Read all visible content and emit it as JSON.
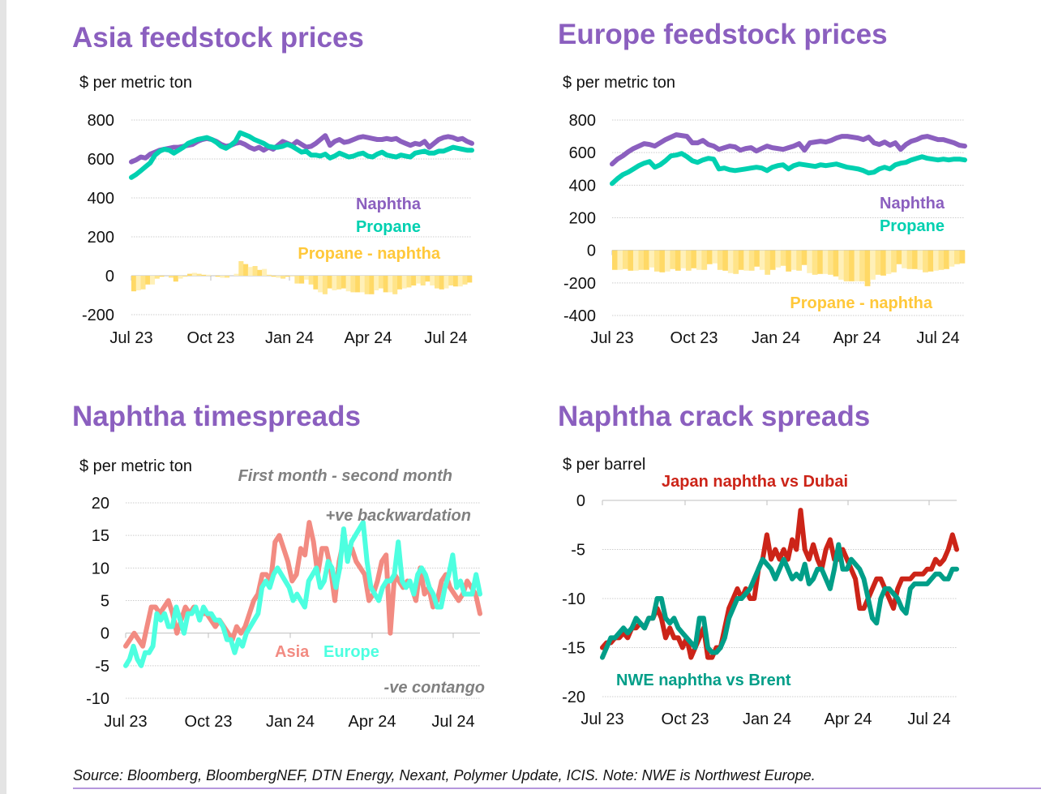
{
  "footer": {
    "source": "Source: Bloomberg, BloombergNEF, DTN Energy, Nexant, Polymer Update, ICIS. Note: NWE is Northwest Europe."
  },
  "colors": {
    "title": "#8b5fbf",
    "naphtha": "#8b5fbf",
    "propane": "#00d0b0",
    "spread": "#ffd24d",
    "asia_ts": "#f28b82",
    "europe_ts": "#4dffe0",
    "japan_crack": "#cc2418",
    "nwe_crack": "#009e88",
    "annotation": "#808080"
  },
  "chart_data": [
    {
      "id": "asia",
      "type": "line",
      "title": "Asia feedstock prices",
      "ylabel": "$ per metric ton",
      "xlabel": "",
      "ylim": [
        -200,
        800
      ],
      "yticks": [
        800,
        600,
        400,
        200,
        0,
        -200
      ],
      "xtick_labels": [
        "Jul 23",
        "Oct 23",
        "Jan 24",
        "Apr 24",
        "Jul 24"
      ],
      "x_range": [
        "Jul 23",
        "early Aug 24"
      ],
      "grid": true,
      "legend": [
        "Naphtha",
        "Propane",
        "Propane - naphtha"
      ],
      "series": [
        {
          "name": "Naphtha",
          "color": "#8b5fbf",
          "kind": "line",
          "values": [
            585,
            595,
            610,
            605,
            625,
            635,
            645,
            650,
            655,
            660,
            660,
            665,
            670,
            675,
            690,
            700,
            705,
            700,
            690,
            675,
            665,
            670,
            680,
            685,
            675,
            660,
            650,
            660,
            645,
            660,
            650,
            670,
            690,
            680,
            670,
            690,
            675,
            660,
            665,
            680,
            700,
            720,
            670,
            690,
            700,
            685,
            690,
            700,
            710,
            715,
            710,
            705,
            700,
            700,
            705,
            700,
            705,
            690,
            680,
            670,
            680,
            675,
            690,
            660,
            680,
            700,
            710,
            715,
            710,
            700,
            705,
            690,
            680
          ]
        },
        {
          "name": "Propane",
          "color": "#00d0b0",
          "kind": "line",
          "values": [
            505,
            520,
            540,
            560,
            580,
            620,
            640,
            650,
            645,
            630,
            645,
            660,
            680,
            690,
            700,
            705,
            710,
            700,
            685,
            665,
            655,
            670,
            690,
            735,
            725,
            715,
            700,
            690,
            680,
            665,
            660,
            660,
            665,
            675,
            665,
            650,
            635,
            640,
            620,
            620,
            615,
            625,
            605,
            615,
            630,
            620,
            610,
            615,
            625,
            630,
            615,
            610,
            625,
            635,
            620,
            615,
            610,
            620,
            615,
            610,
            630,
            635,
            640,
            630,
            630,
            640,
            640,
            650,
            660,
            655,
            650,
            645,
            645
          ]
        },
        {
          "name": "Propane - naphtha",
          "color": "#ffd24d",
          "kind": "bar",
          "values": [
            -80,
            -75,
            -70,
            -45,
            -45,
            -15,
            -5,
            0,
            -10,
            -30,
            -15,
            -5,
            10,
            15,
            10,
            5,
            5,
            0,
            -5,
            -10,
            -10,
            0,
            10,
            75,
            60,
            45,
            50,
            30,
            35,
            5,
            -5,
            -10,
            -15,
            -5,
            -5,
            -40,
            -40,
            -20,
            -45,
            -70,
            -85,
            -95,
            -65,
            -75,
            -70,
            -65,
            -80,
            -85,
            -85,
            -85,
            -95,
            -95,
            -75,
            -65,
            -85,
            -85,
            -95,
            -70,
            -65,
            -60,
            -50,
            -40,
            -50,
            -30,
            -50,
            -65,
            -70,
            -65,
            -50,
            -55,
            -55,
            -45,
            -35
          ]
        }
      ]
    },
    {
      "id": "europe",
      "type": "line",
      "title": "Europe feedstock prices",
      "ylabel": "$ per metric ton",
      "xlabel": "",
      "ylim": [
        -400,
        800
      ],
      "yticks": [
        800,
        600,
        400,
        200,
        0,
        -200,
        -400
      ],
      "xtick_labels": [
        "Jul 23",
        "Oct 23",
        "Jan 24",
        "Apr 24",
        "Jul 24"
      ],
      "x_range": [
        "Jul 23",
        "early Aug 24"
      ],
      "grid": true,
      "legend": [
        "Naphtha",
        "Propane",
        "Propane - naphtha"
      ],
      "series": [
        {
          "name": "Naphtha",
          "color": "#8b5fbf",
          "kind": "line",
          "values": [
            530,
            560,
            580,
            605,
            625,
            640,
            655,
            650,
            640,
            660,
            680,
            695,
            710,
            705,
            700,
            660,
            660,
            675,
            650,
            640,
            620,
            630,
            640,
            635,
            615,
            625,
            630,
            610,
            625,
            640,
            630,
            625,
            620,
            630,
            640,
            655,
            615,
            660,
            665,
            670,
            665,
            675,
            690,
            700,
            700,
            695,
            690,
            680,
            695,
            660,
            650,
            665,
            645,
            660,
            620,
            650,
            670,
            680,
            695,
            700,
            690,
            680,
            680,
            670,
            660,
            645,
            640
          ]
        },
        {
          "name": "Propane",
          "color": "#00d0b0",
          "kind": "line",
          "values": [
            410,
            440,
            465,
            480,
            500,
            520,
            535,
            545,
            510,
            525,
            550,
            580,
            585,
            595,
            575,
            550,
            540,
            555,
            565,
            560,
            500,
            505,
            495,
            490,
            495,
            500,
            505,
            510,
            505,
            490,
            510,
            520,
            525,
            500,
            520,
            530,
            525,
            520,
            515,
            525,
            520,
            525,
            530,
            520,
            510,
            505,
            500,
            490,
            475,
            480,
            500,
            510,
            500,
            525,
            535,
            540,
            555,
            565,
            575,
            565,
            560,
            555,
            560,
            555,
            560,
            560,
            555
          ]
        },
        {
          "name": "Propane - naphtha",
          "color": "#ffd24d",
          "kind": "bar",
          "values": [
            -120,
            -120,
            -115,
            -125,
            -125,
            -120,
            -120,
            -105,
            -130,
            -135,
            -130,
            -115,
            -125,
            -110,
            -125,
            -110,
            -120,
            -120,
            -85,
            -80,
            -120,
            -125,
            -140,
            -145,
            -120,
            -125,
            -125,
            -100,
            -120,
            -150,
            -120,
            -105,
            -95,
            -130,
            -120,
            -125,
            -90,
            -140,
            -150,
            -145,
            -145,
            -150,
            -160,
            -180,
            -190,
            -190,
            -190,
            -190,
            -220,
            -180,
            -150,
            -155,
            -145,
            -135,
            -85,
            -110,
            -115,
            -115,
            -120,
            -135,
            -130,
            -125,
            -120,
            -115,
            -100,
            -85,
            -80
          ]
        }
      ]
    },
    {
      "id": "timespreads",
      "type": "line",
      "title": "Naphtha timespreads",
      "ylabel": "$ per metric ton",
      "xlabel": "",
      "ylim": [
        -10,
        20
      ],
      "yticks": [
        20,
        15,
        10,
        5,
        0,
        -5,
        -10
      ],
      "xtick_labels": [
        "Jul 23",
        "Oct 23",
        "Jan 24",
        "Apr 24",
        "Jul 24"
      ],
      "x_range": [
        "Jul 23",
        "early Aug 24"
      ],
      "grid": true,
      "annotations": [
        "First month - second month",
        "+ve backwardation",
        "-ve contango"
      ],
      "legend": [
        "Asia",
        "Europe"
      ],
      "series": [
        {
          "name": "Asia",
          "color": "#f28b82",
          "values": [
            -2,
            -1,
            0,
            -1,
            -2,
            1,
            4,
            4,
            3,
            4,
            5,
            3,
            0,
            2,
            4,
            3,
            4,
            3,
            3,
            3,
            2,
            1,
            2,
            1,
            0,
            -1,
            1,
            0,
            1,
            3,
            5,
            6,
            9,
            9,
            8,
            14,
            15,
            13,
            11,
            8,
            9,
            13,
            12,
            17,
            14,
            9,
            13,
            13,
            10,
            5,
            11,
            14,
            13,
            13,
            11,
            10,
            9,
            5,
            6,
            8,
            11,
            12,
            0,
            9,
            8,
            7,
            8,
            7,
            5,
            10,
            6,
            7,
            4,
            5,
            8,
            9,
            7,
            6,
            5,
            6,
            8,
            7,
            6,
            3
          ]
        },
        {
          "name": "Europe",
          "color": "#4dffe0",
          "values": [
            -5,
            -4,
            -2,
            -4,
            -5,
            -3,
            -3,
            -2,
            3,
            2,
            3,
            1,
            1,
            4,
            2,
            0,
            3,
            3,
            4,
            2,
            4,
            3,
            3,
            2,
            2,
            1,
            -1,
            -1,
            -3,
            -1,
            -2,
            0,
            1,
            2,
            3,
            7,
            8,
            7,
            9,
            10,
            9,
            8,
            7,
            5,
            6,
            5,
            4,
            8,
            9,
            10,
            7,
            8,
            11,
            10,
            7,
            10,
            16,
            11,
            14,
            15,
            16,
            17,
            11,
            7,
            6,
            5,
            7,
            8,
            8,
            9,
            14,
            8,
            7,
            8,
            6,
            9,
            10,
            9,
            7,
            6,
            4,
            4,
            7,
            9,
            12,
            7,
            8,
            6,
            6,
            6,
            9,
            6
          ]
        }
      ]
    },
    {
      "id": "crack",
      "type": "line",
      "title": "Naphtha crack spreads",
      "ylabel": "$ per barrel",
      "xlabel": "",
      "ylim": [
        -20,
        0
      ],
      "yticks": [
        0,
        -5,
        -10,
        -15,
        -20
      ],
      "xtick_labels": [
        "Jul 23",
        "Oct 23",
        "Jan 24",
        "Apr 24",
        "Jul 24"
      ],
      "x_range": [
        "Jul 23",
        "early Aug 24"
      ],
      "grid": true,
      "legend": [
        "Japan naphtha vs Dubai",
        "NWE naphtha vs Brent"
      ],
      "series": [
        {
          "name": "Japan naphtha vs Dubai",
          "color": "#cc2418",
          "values": [
            -15,
            -14.5,
            -14.5,
            -14,
            -14,
            -13.5,
            -14,
            -13,
            -13,
            -12.5,
            -13,
            -12,
            -12,
            -11,
            -12,
            -14,
            -13,
            -14,
            -14,
            -15,
            -14,
            -16,
            -15,
            -14,
            -13,
            -16,
            -16,
            -15,
            -15,
            -13,
            -11,
            -10,
            -9,
            -10,
            -9,
            -10,
            -10,
            -7,
            -6,
            -3.5,
            -6,
            -5,
            -6,
            -5,
            -6,
            -4,
            -5,
            -1,
            -5,
            -6,
            -4.5,
            -6,
            -7,
            -5,
            -4,
            -6,
            -6,
            -5,
            -6,
            -7,
            -8,
            -11,
            -11,
            -10,
            -9,
            -8,
            -8,
            -9,
            -10,
            -11,
            -9,
            -8,
            -8,
            -8,
            -7.5,
            -7.5,
            -7.5,
            -7,
            -7,
            -6,
            -6.5,
            -6,
            -5,
            -3.5,
            -5
          ]
        },
        {
          "name": "NWE naphtha vs Brent",
          "color": "#009e88",
          "values": [
            -16,
            -15,
            -14,
            -14,
            -13.5,
            -13,
            -13.5,
            -13,
            -12,
            -12.5,
            -13,
            -12,
            -12,
            -10,
            -10,
            -12,
            -12.5,
            -12,
            -13,
            -13.5,
            -14,
            -14.5,
            -15,
            -12,
            -12,
            -15,
            -15.5,
            -15.5,
            -15,
            -14,
            -12,
            -11,
            -10,
            -10,
            -9.5,
            -9,
            -8,
            -7,
            -6,
            -6.5,
            -7,
            -8,
            -7,
            -6,
            -7,
            -8,
            -7.5,
            -8,
            -6.5,
            -8.5,
            -8,
            -7,
            -7,
            -8,
            -9,
            -7,
            -4.5,
            -7,
            -7,
            -6,
            -6.5,
            -7,
            -8,
            -10,
            -12,
            -12.5,
            -10,
            -9,
            -9,
            -9.5,
            -10,
            -11,
            -11.5,
            -9,
            -8.5,
            -8.5,
            -8.5,
            -8.5,
            -8,
            -7.5,
            -7.5,
            -8,
            -8,
            -7,
            -7
          ]
        }
      ]
    }
  ]
}
